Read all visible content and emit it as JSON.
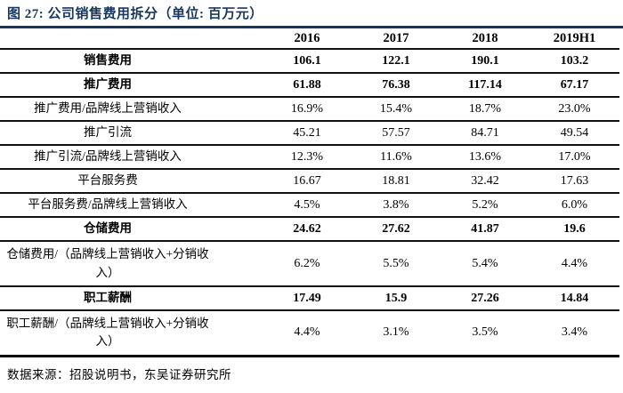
{
  "title": "图 27: 公司销售费用拆分（单位: 百万元）",
  "table": {
    "columns": [
      "2016",
      "2017",
      "2018",
      "2019H1"
    ],
    "rows": [
      {
        "label": "销售费用",
        "bold": true,
        "values": [
          "106.1",
          "122.1",
          "190.1",
          "103.2"
        ]
      },
      {
        "label": "推广费用",
        "bold": true,
        "values": [
          "61.88",
          "76.38",
          "117.14",
          "67.17"
        ]
      },
      {
        "label": "推广费用/品牌线上营销收入",
        "bold": false,
        "values": [
          "16.9%",
          "15.4%",
          "18.7%",
          "23.0%"
        ]
      },
      {
        "label": "推广引流",
        "bold": false,
        "values": [
          "45.21",
          "57.57",
          "84.71",
          "49.54"
        ]
      },
      {
        "label": "推广引流/品牌线上营销收入",
        "bold": false,
        "values": [
          "12.3%",
          "11.6%",
          "13.6%",
          "17.0%"
        ]
      },
      {
        "label": "平台服务费",
        "bold": false,
        "values": [
          "16.67",
          "18.81",
          "32.42",
          "17.63"
        ]
      },
      {
        "label": "平台服务费/品牌线上营销收入",
        "bold": false,
        "values": [
          "4.5%",
          "3.8%",
          "5.2%",
          "6.0%"
        ]
      },
      {
        "label": "仓储费用",
        "bold": true,
        "values": [
          "24.62",
          "27.62",
          "41.87",
          "19.6"
        ]
      },
      {
        "label": "仓储费用/（品牌线上营销收入+分销收入）",
        "bold": false,
        "values": [
          "6.2%",
          "5.5%",
          "5.4%",
          "4.4%"
        ]
      },
      {
        "label": "职工薪酬",
        "bold": true,
        "values": [
          "17.49",
          "15.9",
          "27.26",
          "14.84"
        ]
      },
      {
        "label": "职工薪酬/（品牌线上营销收入+分销收入）",
        "bold": false,
        "values": [
          "4.4%",
          "3.1%",
          "3.5%",
          "3.4%"
        ]
      }
    ]
  },
  "source": "数据来源：招股说明书，东吴证券研究所",
  "colors": {
    "title_navy": "#17375E",
    "table_line": "#101010",
    "text": "#000000",
    "background": "#ffffff"
  }
}
